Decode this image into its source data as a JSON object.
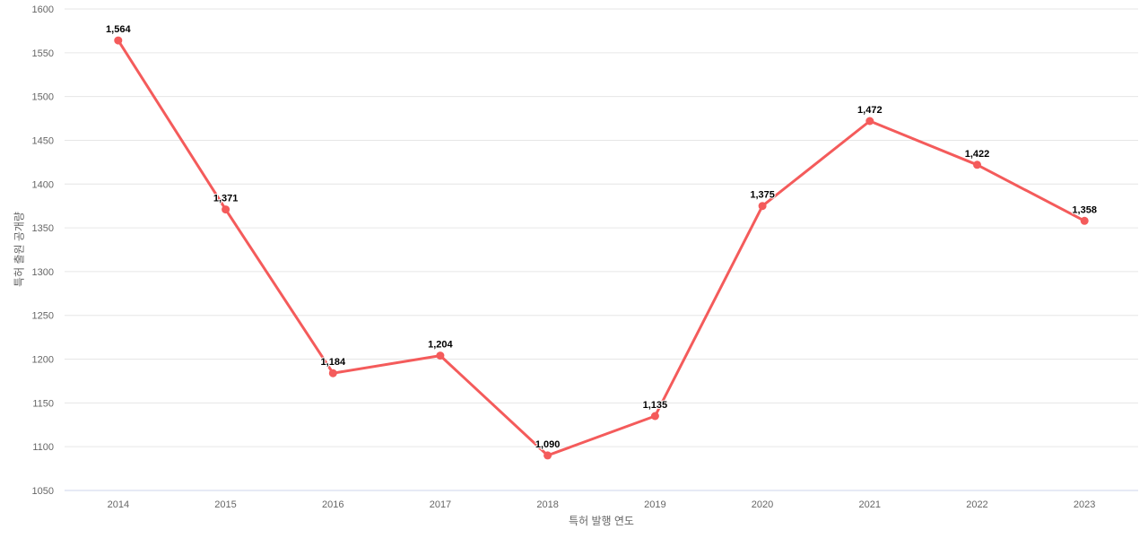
{
  "chart_data": {
    "type": "line",
    "title": "",
    "xlabel": "특허 발행 연도",
    "ylabel": "특허 출원 공개량",
    "categories": [
      "2014",
      "2015",
      "2016",
      "2017",
      "2018",
      "2019",
      "2020",
      "2021",
      "2022",
      "2023"
    ],
    "series": [
      {
        "name": "특허 출원 공개량",
        "values": [
          1564,
          1371,
          1184,
          1204,
          1090,
          1135,
          1375,
          1472,
          1422,
          1358
        ],
        "value_labels": [
          "1,564",
          "1,371",
          "1,184",
          "1,204",
          "1,090",
          "1,135",
          "1,375",
          "1,472",
          "1,422",
          "1,358"
        ]
      }
    ],
    "ylim": [
      1050,
      1600
    ],
    "ytick_interval": 50,
    "ytick_labels": [
      "1050",
      "1100",
      "1150",
      "1200",
      "1250",
      "1300",
      "1350",
      "1400",
      "1450",
      "1500",
      "1550",
      "1600"
    ],
    "grid": "horizontal",
    "legend": "none",
    "colors": {
      "line": "#f45b5b",
      "marker": "#f45b5b",
      "grid": "#e6e6e6",
      "axis_line": "#ccd6eb",
      "tick_label": "#666666",
      "axis_title": "#666666",
      "data_label": "#000000",
      "background": "#ffffff"
    }
  }
}
